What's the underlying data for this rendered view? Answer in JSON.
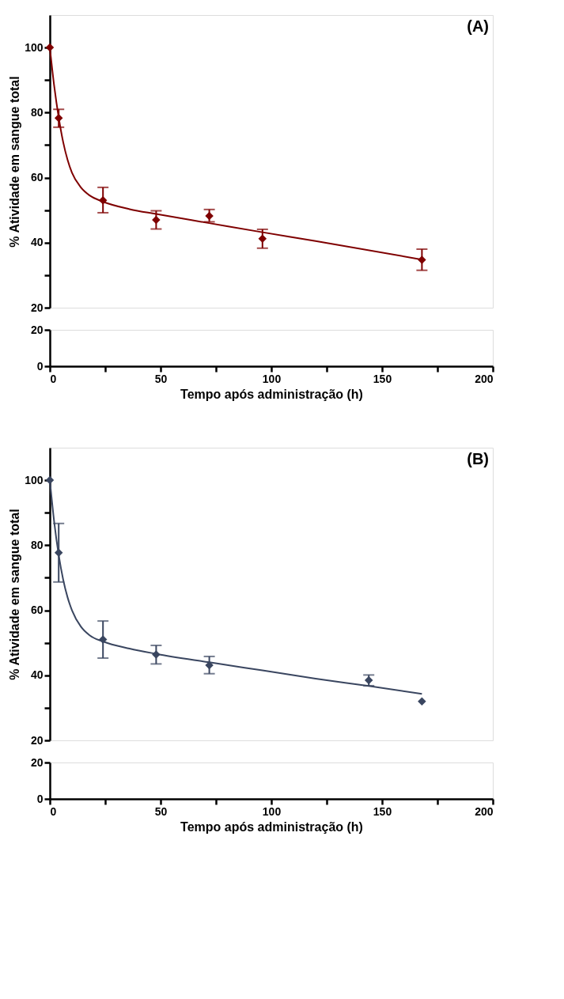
{
  "chart_data": [
    {
      "type": "scatter",
      "annotations": [
        "(A)"
      ],
      "ylabel": "% Atividade em sangue total",
      "xlim": [
        0,
        200
      ],
      "ylim": [
        20,
        110
      ],
      "yticks": [
        20,
        {
          "value": 30,
          "label": null
        },
        40,
        {
          "value": 50,
          "label": null
        },
        60,
        {
          "value": 70,
          "label": null
        },
        80,
        {
          "value": 90,
          "label": null
        },
        100
      ],
      "tick_labels": "y",
      "grid": false,
      "series": [
        {
          "type": "line",
          "color": "#7f0000",
          "line_style": "solid",
          "marker": "none",
          "x": [
            0,
            2,
            4,
            6,
            8,
            10,
            14,
            18,
            24,
            36,
            48,
            72,
            96,
            120,
            168
          ],
          "values": [
            100,
            88,
            78.5,
            71,
            65.5,
            61.5,
            57,
            54.5,
            52.6,
            50.3,
            48.8,
            46,
            43.2,
            40.5,
            34.8
          ]
        },
        {
          "type": "scatter",
          "marker": "diamond",
          "color": "#7f0000",
          "x": [
            0,
            4,
            24,
            48,
            72,
            96,
            168
          ],
          "values": [
            100,
            78.3,
            53,
            47,
            48.2,
            41.2,
            34.7
          ],
          "errors": [
            null,
            [
              75.5,
              81
            ],
            [
              49.2,
              57
            ],
            [
              44.2,
              49.8
            ],
            [
              46.4,
              50.2
            ],
            [
              38.3,
              44.1
            ],
            [
              31.5,
              38
            ]
          ]
        }
      ]
    },
    {
      "type": "scatter",
      "xlabel": "Tempo após administração (h)",
      "xlim": [
        0,
        200
      ],
      "xticks": [
        0,
        {
          "value": 25,
          "label": null
        },
        50,
        {
          "value": 75,
          "label": null
        },
        100,
        {
          "value": 125,
          "label": null
        },
        150,
        {
          "value": 175,
          "label": null
        },
        200
      ],
      "ylim": [
        0,
        20
      ],
      "yticks": [
        0,
        20
      ],
      "grid": false
    },
    {
      "type": "scatter",
      "annotations": [
        "(B)"
      ],
      "ylabel": "% Atividade em sangue total",
      "xlim": [
        0,
        200
      ],
      "ylim": [
        20,
        110
      ],
      "yticks": [
        20,
        {
          "value": 30,
          "label": null
        },
        40,
        {
          "value": 50,
          "label": null
        },
        60,
        {
          "value": 70,
          "label": null
        },
        80,
        {
          "value": 90,
          "label": null
        },
        100
      ],
      "tick_labels": "y",
      "grid": false,
      "series": [
        {
          "type": "line",
          "color": "#3a4660",
          "line_style": "solid",
          "marker": "none",
          "x": [
            0,
            2,
            4,
            6,
            8,
            10,
            14,
            18,
            24,
            36,
            48,
            72,
            96,
            120,
            144,
            168
          ],
          "values": [
            100,
            87,
            77,
            69.5,
            64,
            60,
            55,
            52.3,
            50.4,
            48.2,
            46.6,
            44,
            41.5,
            39,
            36.7,
            34.3
          ]
        },
        {
          "type": "scatter",
          "marker": "diamond",
          "color": "#3a4660",
          "x": [
            0,
            4,
            24,
            48,
            72,
            144,
            168
          ],
          "values": [
            100,
            77.7,
            51,
            46.4,
            43.1,
            38.5,
            32
          ],
          "errors": [
            null,
            [
              68.7,
              86.7
            ],
            [
              45.3,
              56.7
            ],
            [
              43.5,
              49.2
            ],
            [
              40.5,
              45.8
            ],
            [
              36.8,
              40.1
            ],
            null
          ]
        }
      ]
    },
    {
      "type": "scatter",
      "xlabel": "Tempo após administração (h)",
      "xlim": [
        0,
        200
      ],
      "xticks": [
        0,
        {
          "value": 25,
          "label": null
        },
        50,
        {
          "value": 75,
          "label": null
        },
        100,
        {
          "value": 125,
          "label": null
        },
        150,
        {
          "value": 175,
          "label": null
        },
        200
      ],
      "ylim": [
        0,
        20
      ],
      "yticks": [
        0,
        20
      ],
      "grid": false
    }
  ]
}
